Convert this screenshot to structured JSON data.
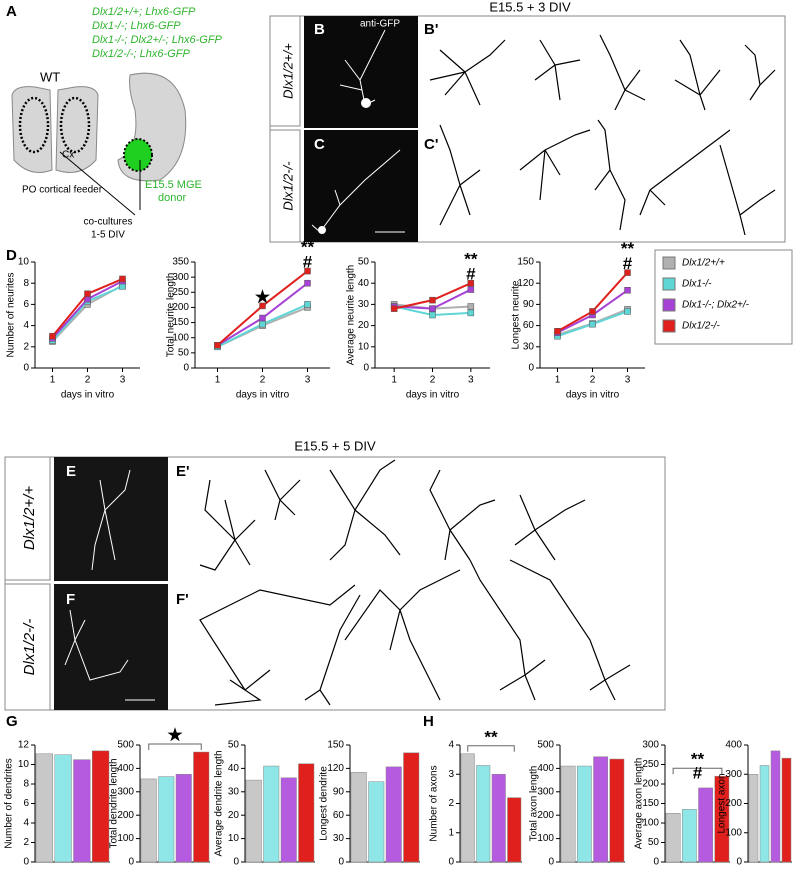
{
  "panel_labels": {
    "a": "A",
    "b": "B",
    "b_prime": "B'",
    "c": "C",
    "c_prime": "C'",
    "d": "D",
    "e": "E",
    "e_prime": "E'",
    "f": "F",
    "f_prime": "F'",
    "g": "G",
    "h": "H"
  },
  "schematic": {
    "genotypes": [
      "Dlx1/2+/+; Lhx6-GFP",
      "Dlx1-/-; Lhx6-GFP",
      "Dlx1-/-; Dlx2+/-; Lhx6-GFP",
      "Dlx1/2-/-; Lhx6-GFP"
    ],
    "wt": "WT",
    "cx": "Cx",
    "feeder": "PO cortical feeder",
    "donor": [
      "E15.5 MGE",
      "donor"
    ],
    "coculture": [
      "co-cultures",
      "1-5 DIV"
    ]
  },
  "culture_3div": {
    "title": "E15.5 + 3 DIV",
    "stain": "anti-GFP",
    "rows": [
      "Dlx1/2+/+",
      "Dlx1/2-/-"
    ]
  },
  "culture_5div": {
    "title": "E15.5 + 5 DIV",
    "rows": [
      "Dlx1/2+/+",
      "Dlx1/2-/-"
    ]
  },
  "chart_data": [
    {
      "type": "line",
      "y_label": "Number of neurites",
      "x_label": "days in vitro",
      "x": [
        1,
        2,
        3
      ],
      "xlim": [
        0.5,
        3.5
      ],
      "xticks": [
        1,
        2,
        3
      ],
      "ylim": [
        0,
        10
      ],
      "yticks": [
        0,
        2,
        4,
        6,
        8,
        10
      ],
      "series": [
        {
          "name": "Dlx1/2+/+",
          "color": "#b0b0b0",
          "values": [
            2.5,
            6.0,
            7.8
          ]
        },
        {
          "name": "Dlx1-/-",
          "color": "#5fd6d6",
          "values": [
            2.6,
            6.3,
            7.7
          ]
        },
        {
          "name": "Dlx1-/-; Dlx2+/-",
          "color": "#a742d6",
          "values": [
            2.8,
            6.5,
            8.2
          ]
        },
        {
          "name": "Dlx1/2-/-",
          "color": "#e0201c",
          "values": [
            3.0,
            7.0,
            8.4
          ]
        }
      ],
      "annotations": []
    },
    {
      "type": "line",
      "y_label": "Total neurite length",
      "x_label": "days in vitro",
      "x": [
        1,
        2,
        3
      ],
      "xlim": [
        0.5,
        3.5
      ],
      "xticks": [
        1,
        2,
        3
      ],
      "ylim": [
        0,
        350
      ],
      "yticks": [
        0,
        50,
        100,
        150,
        200,
        250,
        300,
        350
      ],
      "series": [
        {
          "name": "Dlx1/2+/+",
          "color": "#b0b0b0",
          "values": [
            70,
            140,
            200
          ]
        },
        {
          "name": "Dlx1-/-",
          "color": "#5fd6d6",
          "values": [
            70,
            145,
            210
          ]
        },
        {
          "name": "Dlx1-/-; Dlx2+/-",
          "color": "#a742d6",
          "values": [
            75,
            165,
            280
          ]
        },
        {
          "name": "Dlx1/2-/-",
          "color": "#e0201c",
          "values": [
            75,
            205,
            320
          ]
        }
      ],
      "annotations": [
        "★",
        "**",
        "#"
      ]
    },
    {
      "type": "line",
      "y_label": "Average neurite length",
      "x_label": "days in vitro",
      "x": [
        1,
        2,
        3
      ],
      "xlim": [
        0.5,
        3.5
      ],
      "xticks": [
        1,
        2,
        3
      ],
      "ylim": [
        0,
        50
      ],
      "yticks": [
        0,
        10,
        20,
        30,
        40,
        50
      ],
      "series": [
        {
          "name": "Dlx1/2+/+",
          "color": "#b0b0b0",
          "values": [
            30,
            28,
            29
          ]
        },
        {
          "name": "Dlx1-/-",
          "color": "#5fd6d6",
          "values": [
            29,
            25,
            26
          ]
        },
        {
          "name": "Dlx1-/-; Dlx2+/-",
          "color": "#a742d6",
          "values": [
            29,
            28,
            37
          ]
        },
        {
          "name": "Dlx1/2-/-",
          "color": "#e0201c",
          "values": [
            28,
            32,
            40
          ]
        }
      ],
      "annotations": [
        "**",
        "#"
      ]
    },
    {
      "type": "line",
      "y_label": "Longest neurite",
      "x_label": "days in vitro",
      "x": [
        1,
        2,
        3
      ],
      "xlim": [
        0.5,
        3.5
      ],
      "xticks": [
        1,
        2,
        3
      ],
      "ylim": [
        0,
        150
      ],
      "yticks": [
        0,
        30,
        60,
        90,
        120,
        150
      ],
      "series": [
        {
          "name": "Dlx1/2+/+",
          "color": "#b0b0b0",
          "values": [
            47,
            63,
            83
          ]
        },
        {
          "name": "Dlx1-/-",
          "color": "#5fd6d6",
          "values": [
            45,
            62,
            80
          ]
        },
        {
          "name": "Dlx1-/-; Dlx2+/-",
          "color": "#a742d6",
          "values": [
            50,
            75,
            110
          ]
        },
        {
          "name": "Dlx1/2-/-",
          "color": "#e0201c",
          "values": [
            52,
            80,
            135
          ]
        }
      ],
      "annotations": [
        "**",
        "#"
      ]
    },
    {
      "type": "bar",
      "y_label": "Number of dendrites",
      "ylim": [
        0,
        12
      ],
      "yticks": [
        0,
        2,
        4,
        6,
        8,
        10,
        12
      ],
      "values": [
        11.1,
        11.0,
        10.5,
        11.4
      ],
      "colors": [
        "#c8c8c8",
        "#8fe6e6",
        "#b45be0",
        "#e0201c"
      ],
      "annotations": []
    },
    {
      "type": "bar",
      "y_label": "Total dendrite length",
      "ylim": [
        0,
        500
      ],
      "yticks": [
        0,
        100,
        200,
        300,
        400,
        500
      ],
      "values": [
        355,
        365,
        375,
        470
      ],
      "colors": [
        "#c8c8c8",
        "#8fe6e6",
        "#b45be0",
        "#e0201c"
      ],
      "annotations": [
        "★"
      ]
    },
    {
      "type": "bar",
      "y_label": "Average dendrite length",
      "ylim": [
        0,
        50
      ],
      "yticks": [
        0,
        10,
        20,
        30,
        40,
        50
      ],
      "values": [
        35,
        41,
        36,
        42
      ],
      "colors": [
        "#c8c8c8",
        "#8fe6e6",
        "#b45be0",
        "#e0201c"
      ],
      "annotations": []
    },
    {
      "type": "bar",
      "y_label": "Longest dendrite",
      "ylim": [
        0,
        150
      ],
      "yticks": [
        0,
        30,
        60,
        90,
        120,
        150
      ],
      "values": [
        115,
        103,
        122,
        140
      ],
      "colors": [
        "#c8c8c8",
        "#8fe6e6",
        "#b45be0",
        "#e0201c"
      ],
      "annotations": []
    },
    {
      "type": "bar",
      "y_label": "Number of axons",
      "ylim": [
        0,
        4
      ],
      "yticks": [
        0,
        1,
        2,
        3,
        4
      ],
      "values": [
        3.7,
        3.3,
        3.0,
        2.2
      ],
      "colors": [
        "#c8c8c8",
        "#8fe6e6",
        "#b45be0",
        "#e0201c"
      ],
      "annotations": [
        "**"
      ]
    },
    {
      "type": "bar",
      "y_label": "Total axon length",
      "ylim": [
        0,
        500
      ],
      "yticks": [
        0,
        100,
        200,
        300,
        400,
        500
      ],
      "values": [
        410,
        410,
        450,
        440
      ],
      "colors": [
        "#c8c8c8",
        "#8fe6e6",
        "#b45be0",
        "#e0201c"
      ],
      "annotations": []
    },
    {
      "type": "bar",
      "y_label": "Average axon length",
      "ylim": [
        0,
        300
      ],
      "yticks": [
        0,
        50,
        100,
        150,
        200,
        250,
        300
      ],
      "values": [
        125,
        135,
        190,
        220
      ],
      "colors": [
        "#c8c8c8",
        "#8fe6e6",
        "#b45be0",
        "#e0201c"
      ],
      "annotations": [
        "**",
        "#"
      ]
    },
    {
      "type": "bar",
      "y_label": "Longest axon",
      "ylim": [
        0,
        400
      ],
      "yticks": [
        0,
        100,
        200,
        300,
        400
      ],
      "values": [
        300,
        330,
        380,
        355
      ],
      "colors": [
        "#c8c8c8",
        "#8fe6e6",
        "#b45be0",
        "#e0201c"
      ],
      "annotations": []
    }
  ]
}
